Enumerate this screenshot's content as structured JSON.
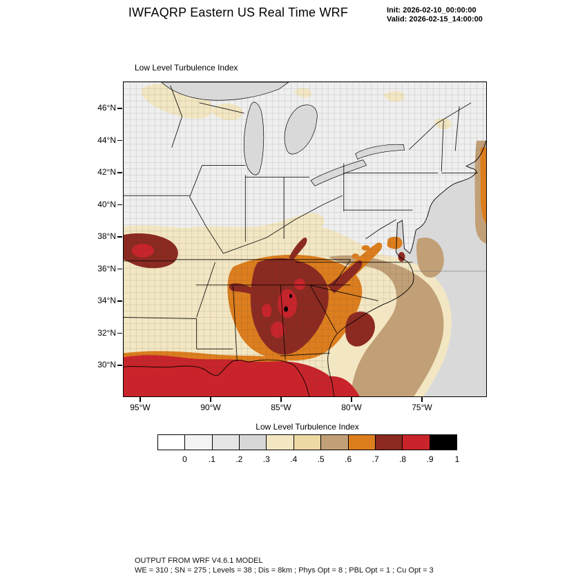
{
  "header": {
    "title": "IWFAQRP Eastern US Real Time WRF",
    "init_label": "Init: 2026-02-10_00:00:00",
    "valid_label": "Valid: 2026-02-15_14:00:00"
  },
  "map": {
    "title": "Low Level Turbulence Index",
    "yticks": [
      "46°N",
      "44°N",
      "42°N",
      "40°N",
      "38°N",
      "36°N",
      "34°N",
      "32°N",
      "30°N"
    ],
    "xticks": [
      "95°W",
      "90°W",
      "85°W",
      "80°W",
      "75°W"
    ]
  },
  "colorbar": {
    "title": "Low Level Turbulence Index",
    "ticks": [
      "0",
      ".1",
      ".2",
      ".3",
      ".4",
      ".5",
      ".6",
      ".7",
      ".8",
      ".9",
      "1"
    ],
    "colors": [
      "#FFFFFF",
      "#F3F3F3",
      "#E6E6E6",
      "#D7D7D7",
      "#F3E7C3",
      "#EDD9A3",
      "#C2A077",
      "#DD7E1E",
      "#8C2A21",
      "#C9242B",
      "#000000"
    ]
  },
  "chart_data": {
    "type": "heatmap",
    "title": "Low Level Turbulence Index",
    "x_ticks": [
      "95°W",
      "90°W",
      "85°W",
      "80°W",
      "75°W"
    ],
    "y_ticks": [
      "46°N",
      "44°N",
      "42°N",
      "40°N",
      "38°N",
      "36°N",
      "34°N",
      "32°N",
      "30°N"
    ],
    "colorbar_levels": [
      0,
      0.1,
      0.2,
      0.3,
      0.4,
      0.5,
      0.6,
      0.7,
      0.8,
      0.9,
      1
    ],
    "colorbar_colors": [
      "#FFFFFF",
      "#F3F3F3",
      "#E6E6E6",
      "#D7D7D7",
      "#F3E7C3",
      "#EDD9A3",
      "#C2A077",
      "#DD7E1E",
      "#8C2A21",
      "#C9242B",
      "#000000"
    ]
  },
  "footer": {
    "line1": "OUTPUT FROM WRF V4.6.1 MODEL",
    "line2": "WE = 310 ; SN = 275 ; Levels = 38 ; Dis = 8km ; Phys Opt = 8 ; PBL Opt = 1 ; Cu Opt = 3"
  }
}
